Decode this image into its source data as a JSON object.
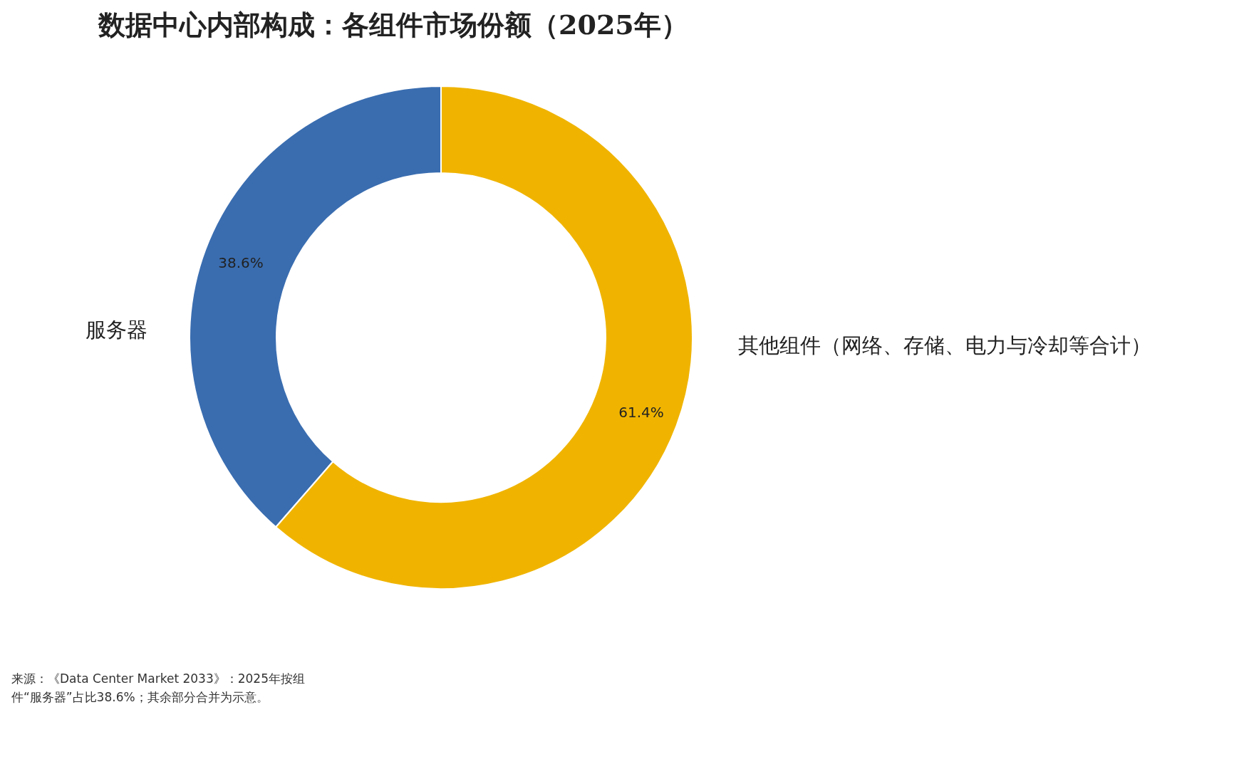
{
  "chart_data": {
    "type": "donut",
    "title": "数据中心内部构成：各组件市场份额（2025年）",
    "categories": [
      "服务器",
      "其他组件（网络、存储、电力与冷却等合计）"
    ],
    "values": [
      38.6,
      61.4
    ],
    "colors": [
      "#3a6db0",
      "#f0b400"
    ],
    "value_labels": [
      "38.6%",
      "61.4%"
    ],
    "annotations": [
      "来源：《Data Center Market 2033》：2025年按组件“服务器”占比38.6%；其余部分合并为示意。"
    ]
  }
}
